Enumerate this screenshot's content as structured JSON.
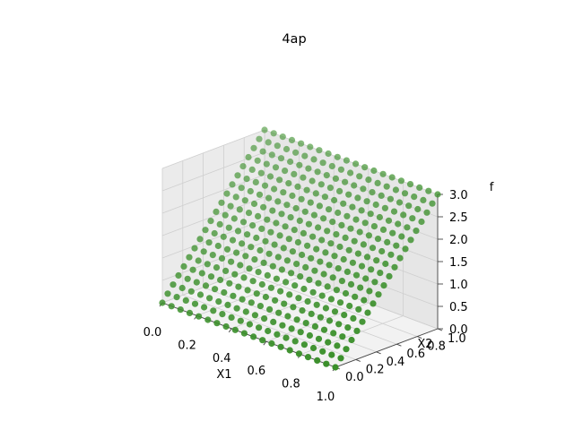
{
  "chart_data": {
    "type": "scatter",
    "projection": "3d",
    "title": "4ap",
    "xlabel": "X1",
    "ylabel": "X2",
    "zlabel": "f",
    "xlim": [
      0.0,
      1.0
    ],
    "ylim": [
      0.0,
      1.0
    ],
    "zlim": [
      0.0,
      3.0
    ],
    "xticks": [
      "0.0",
      "0.2",
      "0.4",
      "0.6",
      "0.8",
      "1.0"
    ],
    "yticks": [
      "0.0",
      "0.2",
      "0.4",
      "0.6",
      "0.8",
      "1.0"
    ],
    "zticks": [
      "0.0",
      "0.5",
      "1.0",
      "1.5",
      "2.0",
      "2.5",
      "3.0"
    ],
    "grid": true,
    "marker_color": "#3a8f2a",
    "x1_values": [
      0.0,
      0.0526,
      0.1053,
      0.1579,
      0.2105,
      0.2632,
      0.3158,
      0.3684,
      0.4211,
      0.4737,
      0.5263,
      0.5789,
      0.6316,
      0.6842,
      0.7368,
      0.7895,
      0.8421,
      0.8947,
      0.9474,
      1.0
    ],
    "x2_values": [
      0.0,
      0.0526,
      0.1053,
      0.1579,
      0.2105,
      0.2632,
      0.3158,
      0.3684,
      0.4211,
      0.4737,
      0.5263,
      0.5789,
      0.6316,
      0.6842,
      0.7368,
      0.7895,
      0.8421,
      0.8947,
      0.9474,
      1.0
    ],
    "surface": "f = 3 * X2 (constant along X1)"
  }
}
